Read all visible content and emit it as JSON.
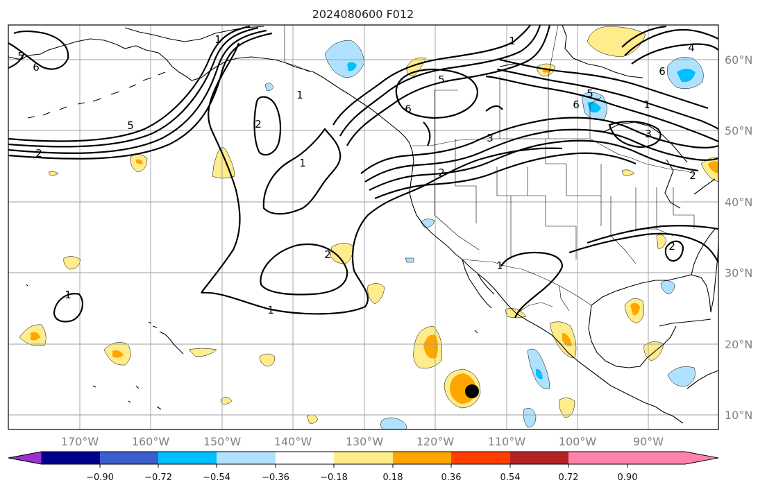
{
  "title": "2024080600 F012",
  "longitude_labels": [
    "170°W",
    "160°W",
    "150°W",
    "140°W",
    "130°W",
    "120°W",
    "110°W",
    "100°W",
    "90°W"
  ],
  "latitude_labels": [
    "60°N",
    "50°N",
    "40°N",
    "30°N",
    "20°N",
    "10°N"
  ],
  "colorbar": {
    "tick_labels": [
      "−0.90",
      "−0.72",
      "−0.54",
      "−0.36",
      "−0.18",
      "0.18",
      "0.36",
      "0.54",
      "0.72",
      "0.90"
    ],
    "colors": [
      "#9932cc",
      "#00008b",
      "#3a5fcd",
      "#00bfff",
      "#b0e2ff",
      "#ffffff",
      "#ffec8b",
      "#ffa500",
      "#ff3e00",
      "#b22222",
      "#ff82ab"
    ]
  },
  "contour_labels": [
    "5",
    "6",
    "2",
    "1",
    "5",
    "2",
    "1",
    "1",
    "2",
    "1",
    "1",
    "5",
    "6",
    "3",
    "2",
    "1",
    "5",
    "6",
    "3",
    "2",
    "4",
    "6",
    "1",
    "1",
    "2"
  ],
  "colors": {
    "positive_light": "#ffec8b",
    "positive_mid": "#ffa500",
    "negative_light": "#b0e2ff",
    "negative_mid": "#00bfff",
    "contour": "#000000",
    "grid": "#9e9e9e",
    "axis_label": "#808080"
  }
}
